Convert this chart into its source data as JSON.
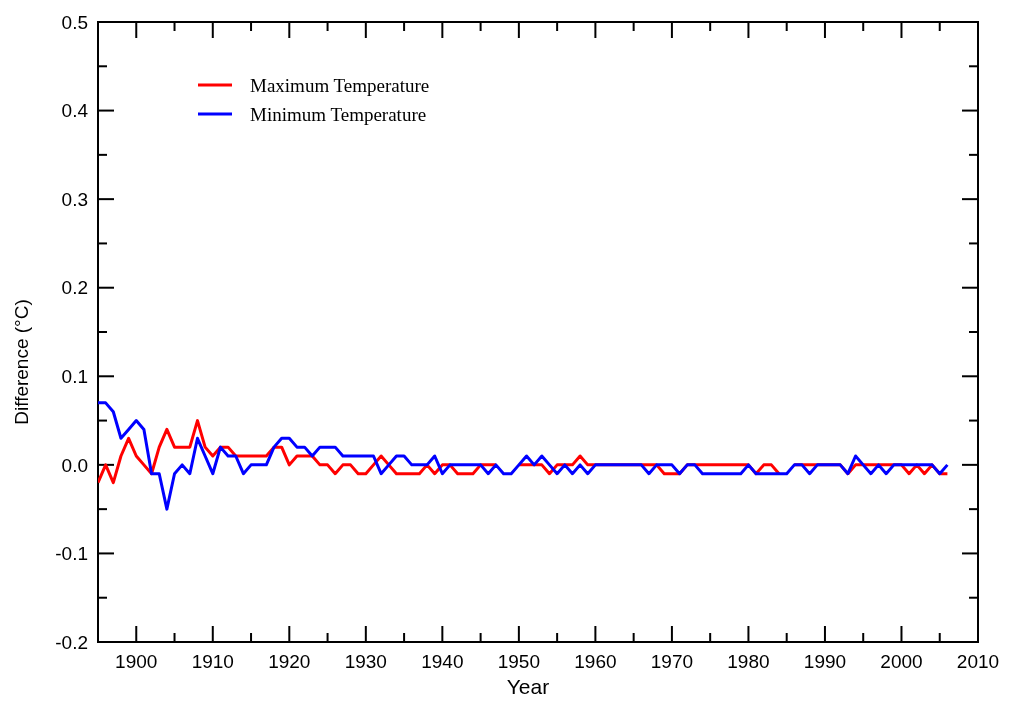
{
  "chart_data": {
    "type": "line",
    "xlabel": "Year",
    "ylabel": "Difference (°C)",
    "xlim": [
      1895,
      2010
    ],
    "xticks": [
      {
        "value": 1900,
        "label": "1900"
      },
      {
        "value": 1905,
        "label": null
      },
      {
        "value": 1910,
        "label": "1910"
      },
      {
        "value": 1915,
        "label": null
      },
      {
        "value": 1920,
        "label": "1920"
      },
      {
        "value": 1925,
        "label": null
      },
      {
        "value": 1930,
        "label": "1930"
      },
      {
        "value": 1935,
        "label": null
      },
      {
        "value": 1940,
        "label": "1940"
      },
      {
        "value": 1945,
        "label": null
      },
      {
        "value": 1950,
        "label": "1950"
      },
      {
        "value": 1955,
        "label": null
      },
      {
        "value": 1960,
        "label": "1960"
      },
      {
        "value": 1965,
        "label": null
      },
      {
        "value": 1970,
        "label": "1970"
      },
      {
        "value": 1975,
        "label": null
      },
      {
        "value": 1980,
        "label": "1980"
      },
      {
        "value": 1985,
        "label": null
      },
      {
        "value": 1990,
        "label": "1990"
      },
      {
        "value": 1995,
        "label": null
      },
      {
        "value": 2000,
        "label": "2000"
      },
      {
        "value": 2005,
        "label": null
      },
      {
        "value": 2010,
        "label": "2010"
      }
    ],
    "ylim": [
      -0.2,
      0.5
    ],
    "yticks": [
      {
        "value": -0.2,
        "label": "-0.2"
      },
      {
        "value": -0.15,
        "label": null
      },
      {
        "value": -0.1,
        "label": "-0.1"
      },
      {
        "value": -0.05,
        "label": null
      },
      {
        "value": 0,
        "label": "0.0"
      },
      {
        "value": 0.05,
        "label": null
      },
      {
        "value": 0.1,
        "label": "0.1"
      },
      {
        "value": 0.15,
        "label": null
      },
      {
        "value": 0.2,
        "label": "0.2"
      },
      {
        "value": 0.25,
        "label": null
      },
      {
        "value": 0.3,
        "label": "0.3"
      },
      {
        "value": 0.35,
        "label": null
      },
      {
        "value": 0.4,
        "label": "0.4"
      },
      {
        "value": 0.45,
        "label": null
      },
      {
        "value": 0.5,
        "label": "0.5"
      }
    ],
    "x": [
      1895,
      1896,
      1897,
      1898,
      1899,
      1900,
      1901,
      1902,
      1903,
      1904,
      1905,
      1906,
      1907,
      1908,
      1909,
      1910,
      1911,
      1912,
      1913,
      1914,
      1915,
      1916,
      1917,
      1918,
      1919,
      1920,
      1921,
      1922,
      1923,
      1924,
      1925,
      1926,
      1927,
      1928,
      1929,
      1930,
      1931,
      1932,
      1933,
      1934,
      1935,
      1936,
      1937,
      1938,
      1939,
      1940,
      1941,
      1942,
      1943,
      1944,
      1945,
      1946,
      1947,
      1948,
      1949,
      1950,
      1951,
      1952,
      1953,
      1954,
      1955,
      1956,
      1957,
      1958,
      1959,
      1960,
      1961,
      1962,
      1963,
      1964,
      1965,
      1966,
      1967,
      1968,
      1969,
      1970,
      1971,
      1972,
      1973,
      1974,
      1975,
      1976,
      1977,
      1978,
      1979,
      1980,
      1981,
      1982,
      1983,
      1984,
      1985,
      1986,
      1987,
      1988,
      1989,
      1990,
      1991,
      1992,
      1993,
      1994,
      1995,
      1996,
      1997,
      1998,
      1999,
      2000,
      2001,
      2002,
      2003,
      2004,
      2005,
      2006
    ],
    "series": [
      {
        "name": "Maximum Temperature",
        "color": "#ff0000",
        "values": [
          -0.02,
          0,
          -0.02,
          0.01,
          0.03,
          0.01,
          0,
          -0.01,
          0.02,
          0.04,
          0.02,
          0.02,
          0.02,
          0.05,
          0.02,
          0.01,
          0.02,
          0.02,
          0.01,
          0.01,
          0.01,
          0.01,
          0.01,
          0.02,
          0.02,
          0,
          0.01,
          0.01,
          0.01,
          0,
          0,
          -0.01,
          0,
          0,
          -0.01,
          -0.01,
          0,
          0.01,
          0,
          -0.01,
          -0.01,
          -0.01,
          -0.01,
          0,
          -0.01,
          0,
          0,
          -0.01,
          -0.01,
          -0.01,
          0,
          0,
          0,
          null,
          null,
          0,
          0,
          0,
          0,
          -0.01,
          0,
          0,
          0,
          0.01,
          0,
          0,
          0,
          0,
          0,
          0,
          0,
          0,
          0,
          0,
          -0.01,
          -0.01,
          -0.01,
          0,
          0,
          0,
          0,
          0,
          0,
          0,
          0,
          0,
          -0.01,
          0,
          0,
          -0.01,
          null,
          0,
          0,
          0,
          0,
          0,
          0,
          0,
          -0.01,
          0,
          0,
          0,
          0,
          0,
          0,
          0,
          -0.01,
          0,
          -0.01,
          0,
          -0.01,
          -0.01
        ]
      },
      {
        "name": "Minimum Temperature",
        "color": "#0000ff",
        "values": [
          0.07,
          0.07,
          0.06,
          0.03,
          0.04,
          0.05,
          0.04,
          -0.01,
          -0.01,
          -0.05,
          -0.01,
          0,
          -0.01,
          0.03,
          0.01,
          -0.01,
          0.02,
          0.01,
          0.01,
          -0.01,
          0,
          0,
          0,
          0.02,
          0.03,
          0.03,
          0.02,
          0.02,
          0.01,
          0.02,
          0.02,
          0.02,
          0.01,
          0.01,
          0.01,
          0.01,
          0.01,
          -0.01,
          0,
          0.01,
          0.01,
          0,
          0,
          0,
          0.01,
          -0.01,
          0,
          0,
          0,
          0,
          0,
          -0.01,
          0,
          -0.01,
          -0.01,
          0,
          0.01,
          0,
          0.01,
          0,
          -0.01,
          0,
          -0.01,
          0,
          -0.01,
          0,
          0,
          0,
          0,
          0,
          0,
          0,
          -0.01,
          0,
          0,
          0,
          -0.01,
          0,
          0,
          -0.01,
          -0.01,
          -0.01,
          -0.01,
          -0.01,
          -0.01,
          0,
          -0.01,
          -0.01,
          -0.01,
          -0.01,
          -0.01,
          0,
          0,
          -0.01,
          0,
          0,
          0,
          0,
          -0.01,
          0.01,
          0,
          -0.01,
          0,
          -0.01,
          0,
          0,
          0,
          0,
          0,
          0,
          -0.01,
          0
        ]
      }
    ],
    "legend": "top left",
    "grid": false,
    "marker": "none",
    "line_style": "solid"
  }
}
